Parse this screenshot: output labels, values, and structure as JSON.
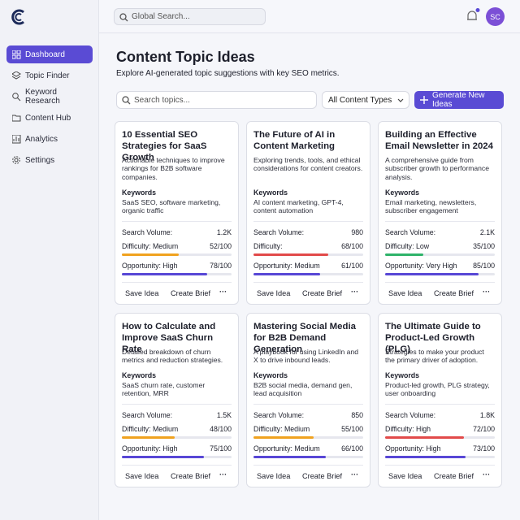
{
  "brand": {
    "avatar": "SC"
  },
  "global_search": "Global Search...",
  "nav": [
    "Dashboard",
    "Topic Finder",
    "Keyword Research",
    "Content Hub",
    "Analytics",
    "Settings"
  ],
  "page": {
    "title": "Content Topic Ideas",
    "subtitle": "Explore AI-generated topic suggestions with key SEO metrics."
  },
  "toolbar": {
    "search_placeholder": "Search topics...",
    "filter": "All Content Types",
    "button": "Generate New Ideas"
  },
  "labels": {
    "keywords": "Keywords",
    "search_volume": "Search Volume:",
    "save": "Save Idea",
    "brief": "Create Brief",
    "more": "···"
  },
  "cards": [
    {
      "title": "10 Essential SEO Strategies for SaaS Growth",
      "description": "Actionable techniques to improve rankings for B2B software companies.",
      "keywords": "SaaS SEO, software marketing, organic traffic",
      "search_volume": "1.2K",
      "difficulty": {
        "label": "Difficulty: Medium",
        "value": 52,
        "max": 100,
        "value_label": "52/100",
        "color": "#f0a21f"
      },
      "opportunity": {
        "label": "Opportunity: High",
        "value": 78,
        "max": 100,
        "value_label": "78/100",
        "color": "#5847d6"
      }
    },
    {
      "title": "The Future of AI in Content Marketing",
      "description": "Exploring trends, tools, and ethical considerations for content creators.",
      "keywords": "AI content marketing, GPT-4, content automation",
      "search_volume": "980",
      "difficulty": {
        "label": "Difficulty:",
        "value": 68,
        "max": 100,
        "value_label": "68/100",
        "color": "#e24a4a"
      },
      "opportunity": {
        "label": "Opportunity: Medium",
        "value": 61,
        "max": 100,
        "value_label": "61/100",
        "color": "#5847d6"
      }
    },
    {
      "title": "Building an Effective Email Newsletter in 2024",
      "description": "A comprehensive guide from subscriber growth to performance analysis.",
      "keywords": "Email marketing, newsletters, subscriber engagement",
      "search_volume": "2.1K",
      "difficulty": {
        "label": "Difficulty: Low",
        "value": 35,
        "max": 100,
        "value_label": "35/100",
        "color": "#2fb36a"
      },
      "opportunity": {
        "label": "Opportunity: Very High",
        "value": 85,
        "max": 100,
        "value_label": "85/100",
        "color": "#5847d6"
      }
    },
    {
      "title": "How to Calculate and Improve SaaS Churn Rate",
      "description": "Detailed breakdown of churn metrics and reduction strategies.",
      "keywords": "SaaS churn rate, customer retention, MRR",
      "search_volume": "1.5K",
      "difficulty": {
        "label": "Difficulty: Medium",
        "value": 48,
        "max": 100,
        "value_label": "48/100",
        "color": "#f0a21f"
      },
      "opportunity": {
        "label": "Opportunity: High",
        "value": 75,
        "max": 100,
        "value_label": "75/100",
        "color": "#5847d6"
      }
    },
    {
      "title": "Mastering Social Media for B2B Demand Generation",
      "description": "A playbook for using LinkedIn and X to drive inbound leads.",
      "keywords": "B2B social media, demand gen, lead acquisition",
      "search_volume": "850",
      "difficulty": {
        "label": "Difficulty: Medium",
        "value": 55,
        "max": 100,
        "value_label": "55/100",
        "color": "#f0a21f"
      },
      "opportunity": {
        "label": "Opportunity: Medium",
        "value": 66,
        "max": 100,
        "value_label": "66/100",
        "color": "#5847d6"
      }
    },
    {
      "title": "The Ultimate Guide to Product-Led Growth (PLG)",
      "description": "Strategies to make your product the primary driver of adoption.",
      "keywords": "Product-led growth, PLG strategy, user onboarding",
      "search_volume": "1.8K",
      "difficulty": {
        "label": "Difficulty: High",
        "value": 72,
        "max": 100,
        "value_label": "72/100",
        "color": "#e24a4a"
      },
      "opportunity": {
        "label": "Opportunity: High",
        "value": 73,
        "max": 100,
        "value_label": "73/100",
        "color": "#5847d6"
      }
    }
  ]
}
